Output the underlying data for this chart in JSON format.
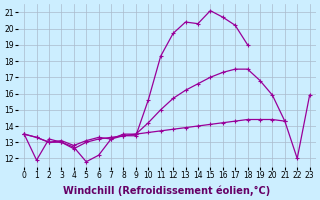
{
  "bg_color": "#cceeff",
  "grid_color": "#aabbcc",
  "line_color": "#990099",
  "xlabel": "Windchill (Refroidissement éolien,°C)",
  "xticks": [
    0,
    1,
    2,
    3,
    4,
    5,
    6,
    7,
    8,
    9,
    10,
    11,
    12,
    13,
    14,
    15,
    16,
    17,
    18,
    19,
    20,
    21,
    22,
    23
  ],
  "yticks": [
    12,
    13,
    14,
    15,
    16,
    17,
    18,
    19,
    20,
    21
  ],
  "xlim": [
    -0.5,
    23.5
  ],
  "ylim": [
    11.5,
    21.5
  ],
  "tick_fontsize": 5.5,
  "label_fontsize": 7,
  "line1_x": [
    0,
    1,
    2,
    3,
    4,
    5,
    6,
    7,
    8,
    9,
    10,
    11,
    12,
    13,
    14,
    15,
    16,
    17,
    18
  ],
  "line1_y": [
    13.5,
    11.9,
    13.2,
    13.0,
    12.7,
    11.8,
    12.2,
    13.2,
    13.4,
    13.4,
    15.6,
    18.3,
    19.7,
    20.4,
    20.3,
    21.1,
    20.7,
    20.2,
    19.0
  ],
  "line2_x": [
    0,
    1,
    2,
    3,
    4,
    5,
    6,
    7,
    8,
    9,
    10,
    11,
    12,
    13,
    14,
    15,
    16,
    17,
    18,
    19,
    20,
    21,
    22,
    23
  ],
  "line2_y": [
    13.5,
    13.3,
    13.0,
    13.1,
    12.8,
    13.1,
    13.3,
    13.2,
    13.5,
    13.5,
    14.2,
    15.0,
    15.7,
    16.2,
    16.6,
    17.0,
    17.3,
    17.5,
    17.5,
    16.8,
    15.9,
    14.3,
    12.0,
    15.9
  ],
  "line3_x": [
    0,
    1,
    2,
    3,
    4,
    5,
    6,
    7,
    8,
    9,
    10,
    11,
    12,
    13,
    14,
    15,
    16,
    17,
    18,
    19,
    20,
    21
  ],
  "line3_y": [
    13.5,
    13.3,
    13.0,
    13.0,
    12.6,
    13.0,
    13.2,
    13.3,
    13.4,
    13.5,
    13.6,
    13.7,
    13.8,
    13.9,
    14.0,
    14.1,
    14.2,
    14.3,
    14.4,
    14.4,
    14.4,
    14.3
  ],
  "linewidth": 0.9,
  "markersize": 3.5
}
